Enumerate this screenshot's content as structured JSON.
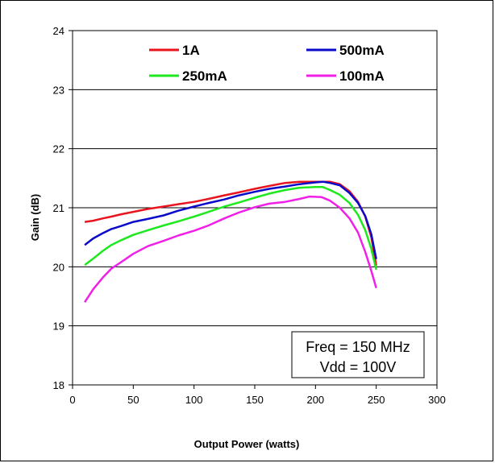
{
  "chart_data": {
    "type": "line",
    "title": "",
    "xlabel": "Output Power (watts)",
    "ylabel": "Gain (dB)",
    "xlim": [
      0,
      300
    ],
    "ylim": [
      18,
      24
    ],
    "xticks": [
      0,
      50,
      100,
      150,
      200,
      250,
      300
    ],
    "yticks": [
      18,
      19,
      20,
      21,
      22,
      23,
      24
    ],
    "grid": "horizontal",
    "legend_placement": "top",
    "annotation": [
      "Freq = 150 MHz",
      "Vdd = 100V"
    ],
    "series": [
      {
        "name": "1A",
        "color": "#e8141e",
        "points": [
          [
            10,
            20.76
          ],
          [
            17,
            20.78
          ],
          [
            25,
            20.82
          ],
          [
            32,
            20.85
          ],
          [
            40,
            20.89
          ],
          [
            50,
            20.93
          ],
          [
            62,
            20.98
          ],
          [
            75,
            21.02
          ],
          [
            87,
            21.06
          ],
          [
            100,
            21.1
          ],
          [
            112,
            21.15
          ],
          [
            125,
            21.21
          ],
          [
            137,
            21.26
          ],
          [
            150,
            21.32
          ],
          [
            162,
            21.37
          ],
          [
            175,
            21.42
          ],
          [
            187,
            21.44
          ],
          [
            200,
            21.44
          ],
          [
            212,
            21.44
          ],
          [
            220,
            21.4
          ],
          [
            228,
            21.28
          ],
          [
            235,
            21.1
          ],
          [
            241,
            20.85
          ],
          [
            246,
            20.5
          ],
          [
            250,
            20.02
          ]
        ]
      },
      {
        "name": "500mA",
        "color": "#0a0ac8",
        "points": [
          [
            10,
            20.37
          ],
          [
            17,
            20.48
          ],
          [
            25,
            20.57
          ],
          [
            32,
            20.64
          ],
          [
            40,
            20.69
          ],
          [
            50,
            20.76
          ],
          [
            62,
            20.81
          ],
          [
            75,
            20.87
          ],
          [
            87,
            20.95
          ],
          [
            100,
            21.02
          ],
          [
            112,
            21.08
          ],
          [
            125,
            21.14
          ],
          [
            137,
            21.21
          ],
          [
            150,
            21.27
          ],
          [
            162,
            21.32
          ],
          [
            175,
            21.36
          ],
          [
            187,
            21.4
          ],
          [
            200,
            21.43
          ],
          [
            206,
            21.44
          ],
          [
            212,
            21.42
          ],
          [
            220,
            21.38
          ],
          [
            228,
            21.25
          ],
          [
            235,
            21.08
          ],
          [
            241,
            20.86
          ],
          [
            246,
            20.55
          ],
          [
            250,
            20.13
          ]
        ]
      },
      {
        "name": "250mA",
        "color": "#1ee81e",
        "points": [
          [
            10,
            20.03
          ],
          [
            17,
            20.14
          ],
          [
            25,
            20.27
          ],
          [
            32,
            20.37
          ],
          [
            40,
            20.45
          ],
          [
            50,
            20.54
          ],
          [
            62,
            20.62
          ],
          [
            75,
            20.7
          ],
          [
            87,
            20.77
          ],
          [
            100,
            20.85
          ],
          [
            112,
            20.93
          ],
          [
            125,
            21.02
          ],
          [
            137,
            21.09
          ],
          [
            150,
            21.17
          ],
          [
            162,
            21.24
          ],
          [
            175,
            21.3
          ],
          [
            187,
            21.34
          ],
          [
            200,
            21.35
          ],
          [
            206,
            21.35
          ],
          [
            212,
            21.3
          ],
          [
            220,
            21.22
          ],
          [
            228,
            21.08
          ],
          [
            235,
            20.88
          ],
          [
            241,
            20.62
          ],
          [
            246,
            20.3
          ],
          [
            250,
            19.95
          ]
        ]
      },
      {
        "name": "100mA",
        "color": "#f020e8",
        "points": [
          [
            10,
            19.4
          ],
          [
            17,
            19.62
          ],
          [
            25,
            19.82
          ],
          [
            32,
            19.97
          ],
          [
            40,
            20.08
          ],
          [
            50,
            20.22
          ],
          [
            62,
            20.35
          ],
          [
            75,
            20.44
          ],
          [
            87,
            20.53
          ],
          [
            100,
            20.61
          ],
          [
            112,
            20.7
          ],
          [
            125,
            20.82
          ],
          [
            137,
            20.92
          ],
          [
            150,
            21.01
          ],
          [
            162,
            21.07
          ],
          [
            175,
            21.1
          ],
          [
            187,
            21.15
          ],
          [
            195,
            21.19
          ],
          [
            205,
            21.18
          ],
          [
            212,
            21.12
          ],
          [
            220,
            21.0
          ],
          [
            228,
            20.82
          ],
          [
            235,
            20.58
          ],
          [
            241,
            20.25
          ],
          [
            246,
            19.93
          ],
          [
            250,
            19.64
          ]
        ]
      }
    ]
  }
}
